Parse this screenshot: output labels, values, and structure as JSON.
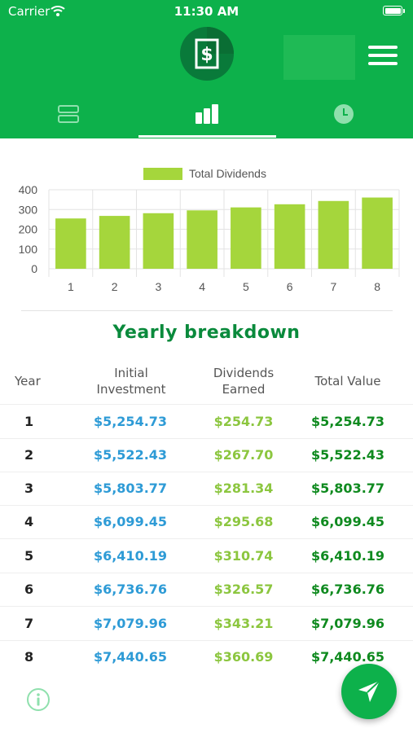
{
  "status_bar": {
    "carrier": "Carrier",
    "time": "11:30 AM"
  },
  "header": {
    "logo_icon": "dollar-document-icon",
    "menu_icon": "hamburger-menu-icon",
    "brand_color": "#0db14b",
    "tabs": [
      {
        "icon": "list-rows-icon",
        "active": false
      },
      {
        "icon": "bar-chart-icon",
        "active": true
      },
      {
        "icon": "clock-icon",
        "active": false
      }
    ]
  },
  "chart_data": {
    "type": "bar",
    "legend": "Total Dividends",
    "categories": [
      "1",
      "2",
      "3",
      "4",
      "5",
      "6",
      "7",
      "8"
    ],
    "series": [
      {
        "name": "Total Dividends",
        "values": [
          254.73,
          267.7,
          281.34,
          295.68,
          310.74,
          326.57,
          343.21,
          360.69
        ]
      }
    ],
    "yticks": [
      "400",
      "300",
      "200",
      "100",
      "0"
    ],
    "ylim": [
      0,
      400
    ],
    "grid": true,
    "legend_position": "top-center",
    "bar_color": "#a5d63c"
  },
  "breakdown": {
    "title": "Yearly breakdown",
    "headers": {
      "year": "Year",
      "initial": [
        "Initial",
        "Investment"
      ],
      "dividends": [
        "Dividends",
        "Earned"
      ],
      "total": "Total Value"
    },
    "rows": [
      {
        "year": "1",
        "initial": "$5,254.73",
        "dividends": "$254.73",
        "total": "$5,254.73"
      },
      {
        "year": "2",
        "initial": "$5,522.43",
        "dividends": "$267.70",
        "total": "$5,522.43"
      },
      {
        "year": "3",
        "initial": "$5,803.77",
        "dividends": "$281.34",
        "total": "$5,803.77"
      },
      {
        "year": "4",
        "initial": "$6,099.45",
        "dividends": "$295.68",
        "total": "$6,099.45"
      },
      {
        "year": "5",
        "initial": "$6,410.19",
        "dividends": "$310.74",
        "total": "$6,410.19"
      },
      {
        "year": "6",
        "initial": "$6,736.76",
        "dividends": "$326.57",
        "total": "$6,736.76"
      },
      {
        "year": "7",
        "initial": "$7,079.96",
        "dividends": "$343.21",
        "total": "$7,079.96"
      },
      {
        "year": "8",
        "initial": "$7,440.65",
        "dividends": "$360.69",
        "total": "$7,440.65"
      }
    ],
    "colors": {
      "initial": "#2e9bd6",
      "dividends": "#8cc63f",
      "total": "#0f8a1f"
    }
  },
  "footer": {
    "info_icon": "info-icon",
    "send_icon": "send-icon"
  }
}
